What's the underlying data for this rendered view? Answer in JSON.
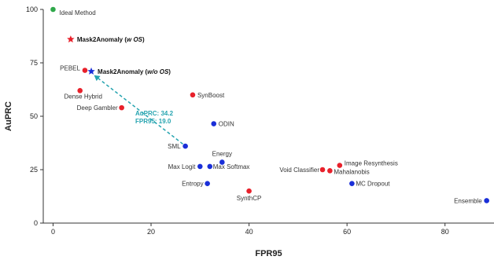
{
  "chart_data": {
    "type": "scatter",
    "title": "",
    "xlabel": "FPR95",
    "ylabel": "AuPRC",
    "xlim": [
      -2,
      90
    ],
    "ylim": [
      0,
      100
    ],
    "xticks": [
      "0",
      "20",
      "40",
      "60",
      "80"
    ],
    "yticks": [
      "0",
      "25",
      "50",
      "75",
      "100"
    ],
    "grid": false,
    "colors": {
      "red": "#e8212b",
      "blue": "#1a2fd8",
      "green": "#2fa84a",
      "teal": "#26a4b0",
      "axis": "#333333"
    },
    "points": [
      {
        "label": "Ideal Method",
        "x": 0,
        "y": 100,
        "color": "green",
        "marker": "circle"
      },
      {
        "label_pre": "Mask2Anomaly (",
        "label_em": "w OS",
        "label_post": ")",
        "x": 3.6,
        "y": 86,
        "color": "red",
        "marker": "star",
        "bold": true
      },
      {
        "label_pre": "Mask2Anomaly (",
        "label_em": "w/o OS",
        "label_post": ")",
        "x": 7.8,
        "y": 71,
        "color": "blue",
        "marker": "star",
        "bold": true
      },
      {
        "label": "PEBEL",
        "x": 6.5,
        "y": 71.5,
        "color": "red",
        "marker": "circle"
      },
      {
        "label": "Dense Hybrid",
        "x": 5.5,
        "y": 62,
        "color": "red",
        "marker": "circle"
      },
      {
        "label": "SynBoost",
        "x": 28.5,
        "y": 60,
        "color": "red",
        "marker": "circle"
      },
      {
        "label": "Deep Gambler",
        "x": 14,
        "y": 54,
        "color": "red",
        "marker": "circle"
      },
      {
        "label": "ODIN",
        "x": 32.8,
        "y": 46.5,
        "color": "blue",
        "marker": "circle"
      },
      {
        "label": "SML",
        "x": 27,
        "y": 36,
        "color": "blue",
        "marker": "circle"
      },
      {
        "label": "Energy",
        "x": 34.5,
        "y": 28.5,
        "color": "blue",
        "marker": "circle"
      },
      {
        "label": "Max Logit",
        "x": 30,
        "y": 26.5,
        "color": "blue",
        "marker": "circle"
      },
      {
        "label": "Max Softmax",
        "x": 32,
        "y": 26.5,
        "color": "blue",
        "marker": "circle"
      },
      {
        "label": "Image Resynthesis",
        "x": 58.5,
        "y": 27,
        "color": "red",
        "marker": "circle"
      },
      {
        "label": "Void Classifier",
        "x": 55,
        "y": 25,
        "color": "red",
        "marker": "circle"
      },
      {
        "label": "Mahalanobis",
        "x": 56.5,
        "y": 24.5,
        "color": "red",
        "marker": "circle"
      },
      {
        "label": "Entropy",
        "x": 31.5,
        "y": 18.5,
        "color": "blue",
        "marker": "circle"
      },
      {
        "label": "MC Dropout",
        "x": 61,
        "y": 18.5,
        "color": "blue",
        "marker": "circle"
      },
      {
        "label": "SynthCP",
        "x": 40,
        "y": 15,
        "color": "red",
        "marker": "circle"
      },
      {
        "label": "Ensemble",
        "x": 88.5,
        "y": 10.5,
        "color": "blue",
        "marker": "circle"
      }
    ],
    "annotation": {
      "lines": [
        "AuPRC: 34.2",
        "FPR95: 19.0"
      ],
      "color": "teal",
      "arrow_from": {
        "x": 26.5,
        "y": 37
      },
      "arrow_to": {
        "x": 8.5,
        "y": 69
      }
    }
  }
}
